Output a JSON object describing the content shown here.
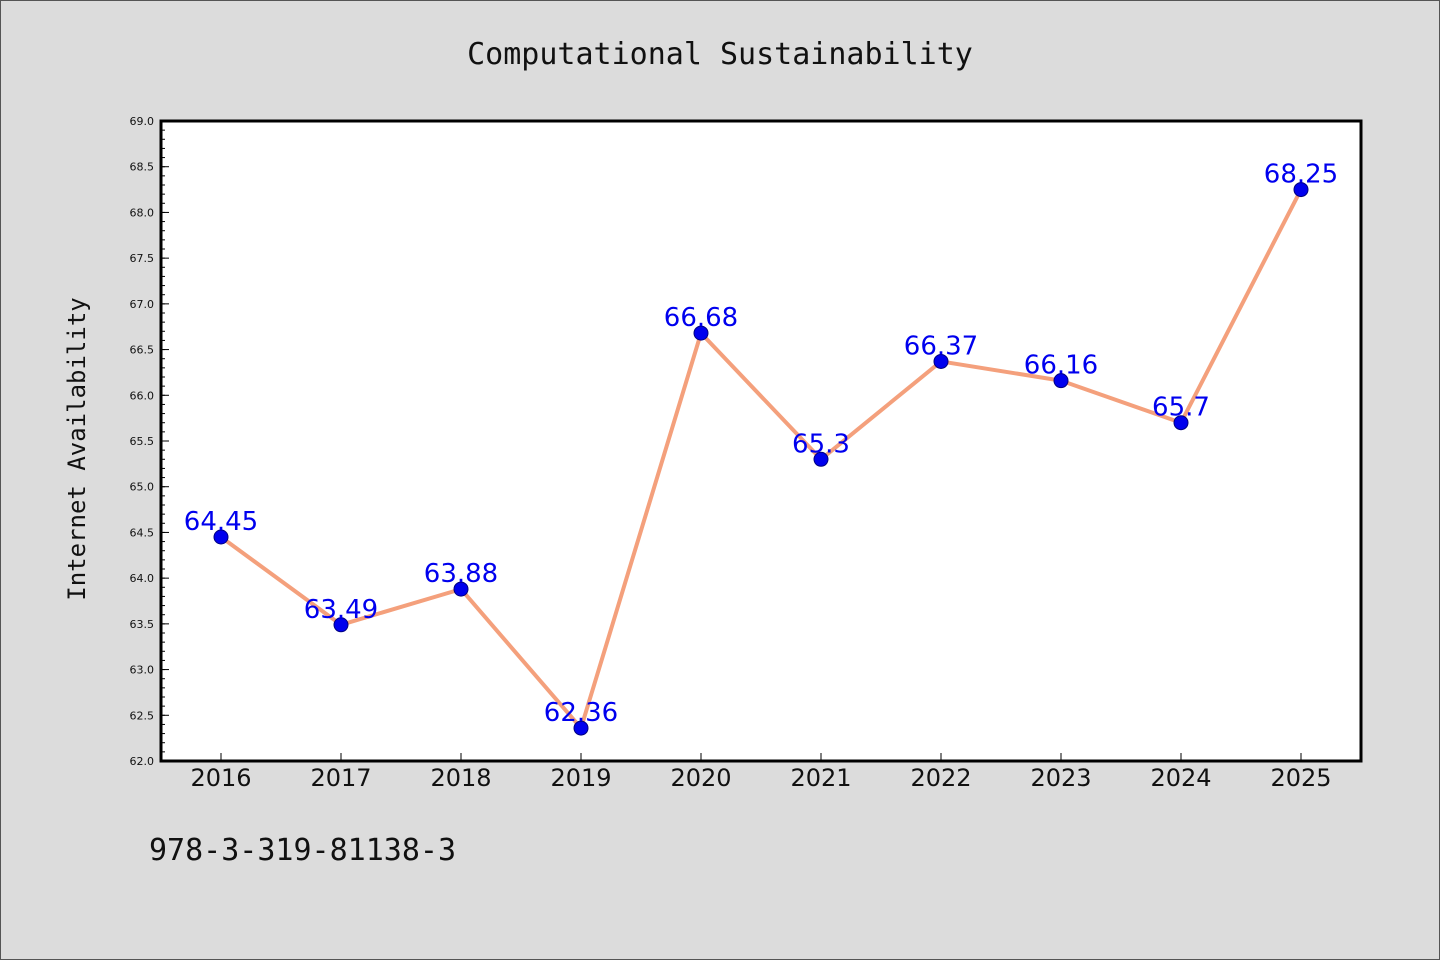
{
  "chart_data": {
    "type": "line",
    "title": "Computational Sustainability",
    "ylabel": "Internet Availability",
    "xlabel": "",
    "categories": [
      "2016",
      "2017",
      "2018",
      "2019",
      "2020",
      "2021",
      "2022",
      "2023",
      "2024",
      "2025"
    ],
    "values": [
      64.45,
      63.49,
      63.88,
      62.36,
      66.68,
      65.3,
      66.37,
      66.16,
      65.7,
      68.25
    ],
    "data_labels": [
      "64.45",
      "63.49",
      "63.88",
      "62.36",
      "66.68",
      "65.3",
      "66.37",
      "66.16",
      "65.7",
      "68.25"
    ],
    "ylim": [
      62.0,
      69.0
    ],
    "yticks": [
      "62.0",
      "62.5",
      "63.0",
      "63.5",
      "64.0",
      "64.5",
      "65.0",
      "65.5",
      "66.0",
      "66.5",
      "67.0",
      "67.5",
      "68.0",
      "68.5",
      "69.0"
    ],
    "grid": false,
    "legend": "none",
    "colors": {
      "line": "#f4a07c",
      "marker": "#0000ee",
      "marker_edge": "#000080",
      "data_label": "#0000ee",
      "background": "#dcdcdc",
      "plot_background": "#ffffff"
    }
  },
  "footer": {
    "isbn": "978-3-319-81138-3"
  }
}
